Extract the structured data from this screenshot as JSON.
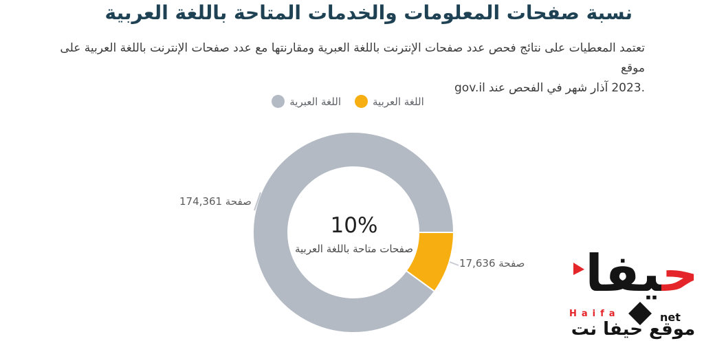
{
  "description": {
    "line1": "تعتمد المعطيات على نتائج فحص عدد صفحات الإنترنت باللغة العبرية ومقارنتها مع عدد صفحات الإنترنت باللغة العربية على موقع",
    "line2_tokens": [
      "gov.il",
      "عند",
      "الفحص",
      "في",
      "شهر",
      "آذار",
      "2023."
    ]
  },
  "chart_data": {
    "type": "pie",
    "donut": true,
    "title": "نسبة صفحات المعلومات والخدمات المتاحة باللغة العربية",
    "series": [
      {
        "name": "اللغة العبرية",
        "value": 174361,
        "label": "174,361 صفحة",
        "color": "#b3bac4"
      },
      {
        "name": "اللغة العربية",
        "value": 17636,
        "label": "17,636 صفحة",
        "color": "#f7ae10"
      }
    ],
    "center_label": "10%",
    "center_sublabel": "صفحات متاحة باللغة العربية",
    "arabic_share_pct": 10,
    "legend_position": "top-center"
  },
  "logo": {
    "arabic_initial": "ح",
    "arabic_rest": "يفا",
    "latin": "Haifa",
    "suffix": "net",
    "tagline": "موقع حيفا نت",
    "red": "#e42529",
    "black": "#141414"
  },
  "colors": {
    "title": "#1e4253",
    "body_text": "#3b3b3b",
    "muted_text": "#5c5c5c",
    "background": "#ffffff"
  }
}
